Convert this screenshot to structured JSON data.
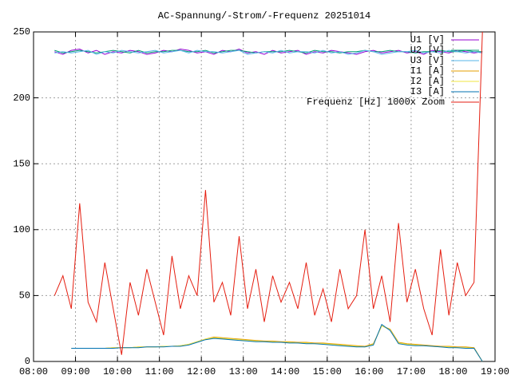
{
  "chart_data": {
    "type": "line",
    "title": "AC-Spannung/-Strom/-Frequenz 20251014",
    "x": [
      8.5,
      8.7,
      8.9,
      9.1,
      9.3,
      9.5,
      9.7,
      9.9,
      10.1,
      10.3,
      10.5,
      10.7,
      10.9,
      11.1,
      11.3,
      11.5,
      11.7,
      11.9,
      12.1,
      12.3,
      12.5,
      12.7,
      12.9,
      13.1,
      13.3,
      13.5,
      13.7,
      13.9,
      14.1,
      14.3,
      14.5,
      14.7,
      14.9,
      15.1,
      15.3,
      15.5,
      15.7,
      15.9,
      16.1,
      16.3,
      16.5,
      16.7,
      16.9,
      17.1,
      17.3,
      17.5,
      17.7,
      17.9,
      18.1,
      18.3,
      18.5,
      18.7
    ],
    "series": [
      {
        "name": "U1 [V]",
        "color": "#9400d3",
        "values": [
          235,
          233,
          236,
          237,
          234,
          236,
          233,
          235,
          234,
          236,
          235,
          233,
          234,
          236,
          235,
          237,
          236,
          234,
          235,
          233,
          236,
          235,
          237,
          234,
          235,
          233,
          236,
          234,
          235,
          236,
          233,
          235,
          234,
          236,
          235,
          234,
          233,
          235,
          236,
          234,
          235,
          236,
          234,
          235,
          233,
          236,
          235,
          234,
          236,
          235,
          234,
          235
        ]
      },
      {
        "name": "U2 [V]",
        "color": "#009e73",
        "values": [
          236,
          234,
          235,
          236,
          235,
          234,
          235,
          236,
          235,
          234,
          236,
          234,
          235,
          235,
          236,
          236,
          235,
          235,
          236,
          234,
          235,
          236,
          236,
          235,
          234,
          235,
          235,
          235,
          236,
          235,
          234,
          236,
          235,
          235,
          234,
          235,
          235,
          236,
          235,
          235,
          236,
          235,
          235,
          234,
          235,
          235,
          236,
          235,
          235,
          236,
          235,
          235
        ]
      },
      {
        "name": "U3 [V]",
        "color": "#56b4e9",
        "values": [
          234,
          235,
          234,
          235,
          236,
          233,
          235,
          234,
          236,
          235,
          234,
          235,
          236,
          234,
          235,
          236,
          234,
          236,
          235,
          235,
          234,
          235,
          236,
          233,
          234,
          235,
          234,
          236,
          234,
          235,
          235,
          234,
          236,
          234,
          235,
          233,
          234,
          236,
          235,
          233,
          234,
          235,
          235,
          236,
          234,
          235,
          234,
          236,
          235,
          234,
          235,
          234
        ]
      },
      {
        "name": "I1 [A]",
        "color": "#e69f00",
        "values": [
          null,
          null,
          10,
          10,
          10,
          10,
          10,
          10.5,
          10.5,
          10.5,
          11,
          11,
          11,
          11.5,
          11.5,
          12,
          13,
          15,
          17,
          18.5,
          18,
          17.5,
          17,
          16.5,
          16,
          15.5,
          15.5,
          15,
          15,
          14.5,
          14.5,
          14,
          14,
          13.5,
          13,
          12.5,
          12,
          11.5,
          13.5,
          27,
          24.5,
          14.5,
          13.5,
          13,
          12.5,
          12,
          11.5,
          11.5,
          11,
          11,
          10.5,
          0
        ]
      },
      {
        "name": "I2 [A]",
        "color": "#f0e442",
        "values": [
          null,
          null,
          10,
          10,
          10,
          10,
          10,
          10.5,
          10.5,
          10.5,
          11,
          11,
          11,
          11.5,
          11.5,
          12,
          13,
          15,
          17,
          18,
          17.5,
          17,
          16.5,
          16,
          15.5,
          15,
          15,
          14.5,
          14.5,
          14,
          14,
          13.5,
          13.5,
          13,
          12.5,
          12,
          11.5,
          11,
          13,
          27,
          24,
          14,
          13,
          12.5,
          12,
          11.5,
          11,
          11,
          10.5,
          10.5,
          10,
          0
        ]
      },
      {
        "name": "I3 [A]",
        "color": "#0072b2",
        "values": [
          null,
          null,
          10,
          10,
          10,
          10,
          10,
          10,
          10.5,
          10.5,
          10.5,
          11,
          11,
          11,
          11.5,
          11.5,
          12.5,
          14.5,
          16.5,
          17.5,
          17,
          16.5,
          16,
          15.5,
          15,
          15,
          14.5,
          14.5,
          14,
          14,
          13.5,
          13.5,
          13,
          12.5,
          12,
          11.5,
          11,
          11,
          12.5,
          28,
          23.5,
          13.5,
          12.5,
          12,
          12,
          11.5,
          11,
          10.5,
          10.5,
          10,
          10,
          0
        ]
      },
      {
        "name": "Frequenz [Hz] 1000x Zoom",
        "color": "#e51e10",
        "values": [
          50,
          65,
          40,
          120,
          45,
          30,
          75,
          40,
          5,
          60,
          35,
          70,
          45,
          20,
          80,
          40,
          65,
          50,
          130,
          45,
          60,
          35,
          95,
          40,
          70,
          30,
          65,
          45,
          60,
          40,
          75,
          35,
          55,
          30,
          70,
          40,
          50,
          100,
          40,
          65,
          30,
          105,
          45,
          70,
          40,
          20,
          85,
          35,
          75,
          50,
          60,
          250
        ]
      }
    ],
    "xlim": [
      8,
      19
    ],
    "xticks": [
      {
        "value": 8,
        "label": "08:00"
      },
      {
        "value": 9,
        "label": "09:00"
      },
      {
        "value": 10,
        "label": "10:00"
      },
      {
        "value": 11,
        "label": "11:00"
      },
      {
        "value": 12,
        "label": "12:00"
      },
      {
        "value": 13,
        "label": "13:00"
      },
      {
        "value": 14,
        "label": "14:00"
      },
      {
        "value": 15,
        "label": "15:00"
      },
      {
        "value": 16,
        "label": "16:00"
      },
      {
        "value": 17,
        "label": "17:00"
      },
      {
        "value": 18,
        "label": "18:00"
      },
      {
        "value": 19,
        "label": "19:00"
      }
    ],
    "ylim": [
      0,
      250
    ],
    "yticks": [
      0,
      50,
      100,
      150,
      200,
      250
    ],
    "grid": true,
    "legend": "top-right"
  }
}
